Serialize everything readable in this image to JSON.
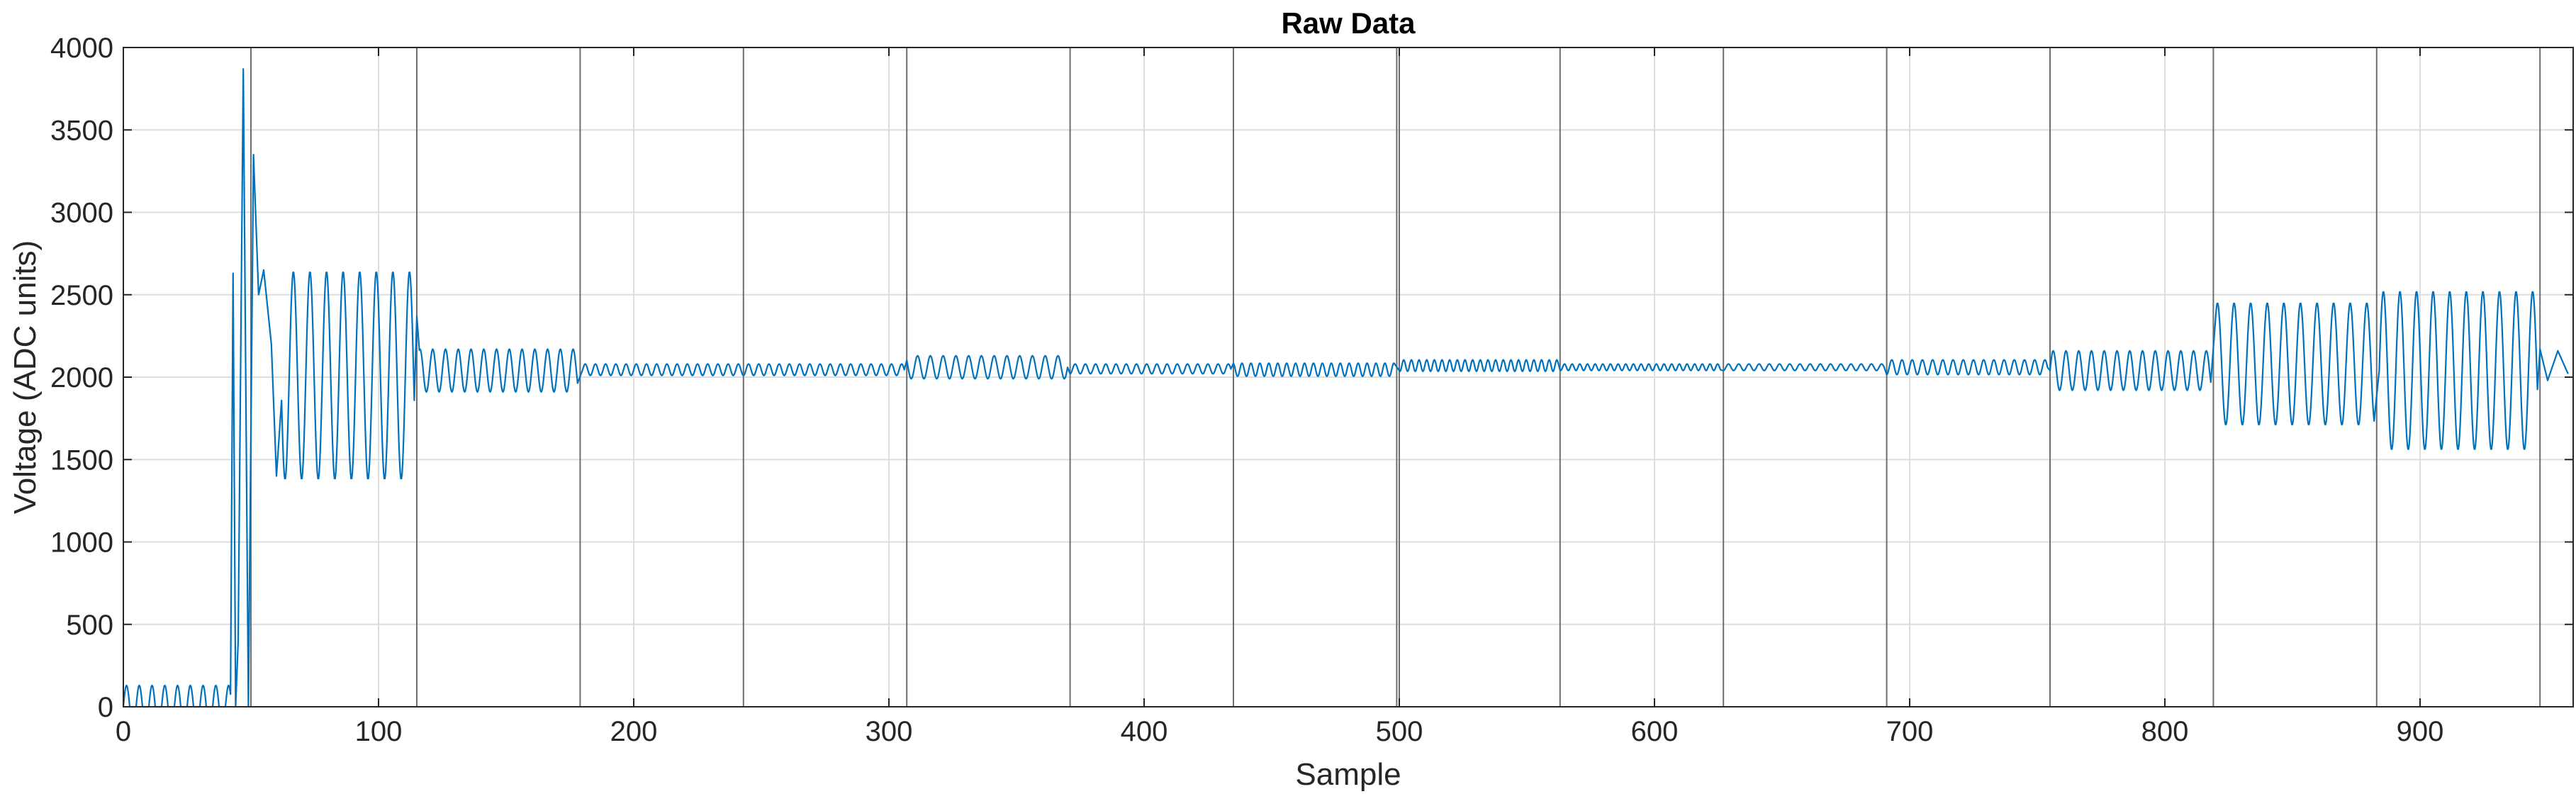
{
  "chart_data": {
    "type": "line",
    "title": "Raw Data",
    "xlabel": "Sample",
    "ylabel": "Voltage (ADC units)",
    "xlim": [
      0,
      960
    ],
    "ylim": [
      0,
      4000
    ],
    "grid": true,
    "x_ticks": [
      0,
      100,
      200,
      300,
      400,
      500,
      600,
      700,
      800,
      900
    ],
    "y_ticks": [
      0,
      500,
      1000,
      1500,
      2000,
      2500,
      3000,
      3500,
      4000
    ],
    "boundary_markers": [
      50,
      115,
      179,
      243,
      307,
      371,
      435,
      499,
      500,
      563,
      627,
      691,
      755,
      819,
      883,
      947
    ],
    "series": [
      {
        "color": "#0072BD",
        "segments": [
          {
            "x0": 0,
            "x1": 42,
            "base": 0,
            "amp": 130,
            "period": 5,
            "rect": true
          },
          {
            "x0": 62,
            "x1": 114,
            "base": 2010,
            "amp": 630,
            "period": 6.5
          },
          {
            "x0": 116,
            "x1": 178,
            "base": 2040,
            "amp": 130,
            "period": 5
          },
          {
            "x0": 180,
            "x1": 306,
            "base": 2045,
            "amp": 35,
            "period": 4
          },
          {
            "x0": 307,
            "x1": 370,
            "base": 2060,
            "amp": 70,
            "period": 5
          },
          {
            "x0": 371,
            "x1": 434,
            "base": 2050,
            "amp": 30,
            "period": 4
          },
          {
            "x0": 435,
            "x1": 498,
            "base": 2045,
            "amp": 40,
            "period": 3.5
          },
          {
            "x0": 500,
            "x1": 562,
            "base": 2070,
            "amp": 35,
            "period": 3
          },
          {
            "x0": 563,
            "x1": 626,
            "base": 2060,
            "amp": 20,
            "period": 3
          },
          {
            "x0": 627,
            "x1": 690,
            "base": 2060,
            "amp": 20,
            "period": 4
          },
          {
            "x0": 691,
            "x1": 754,
            "base": 2060,
            "amp": 45,
            "period": 4
          },
          {
            "x0": 755,
            "x1": 818,
            "base": 2040,
            "amp": 120,
            "period": 5
          },
          {
            "x0": 820,
            "x1": 882,
            "base": 2080,
            "amp": 370,
            "period": 6.5
          },
          {
            "x0": 884,
            "x1": 946,
            "base": 2040,
            "amp": 480,
            "period": 6.5
          }
        ],
        "spikes": [
          {
            "x": 43,
            "y": 2630
          },
          {
            "x": 44,
            "y": 0
          },
          {
            "x": 45,
            "y": 400
          },
          {
            "x": 47,
            "y": 3870
          },
          {
            "x": 49,
            "y": 0
          },
          {
            "x": 51,
            "y": 3350
          },
          {
            "x": 53,
            "y": 2500
          },
          {
            "x": 55,
            "y": 2650
          },
          {
            "x": 58,
            "y": 2200
          },
          {
            "x": 60,
            "y": 1400
          },
          {
            "x": 115,
            "y": 2370
          },
          {
            "x": 947,
            "y": 2170
          },
          {
            "x": 950,
            "y": 1980
          },
          {
            "x": 954,
            "y": 2160
          },
          {
            "x": 958,
            "y": 2020
          }
        ]
      }
    ]
  }
}
